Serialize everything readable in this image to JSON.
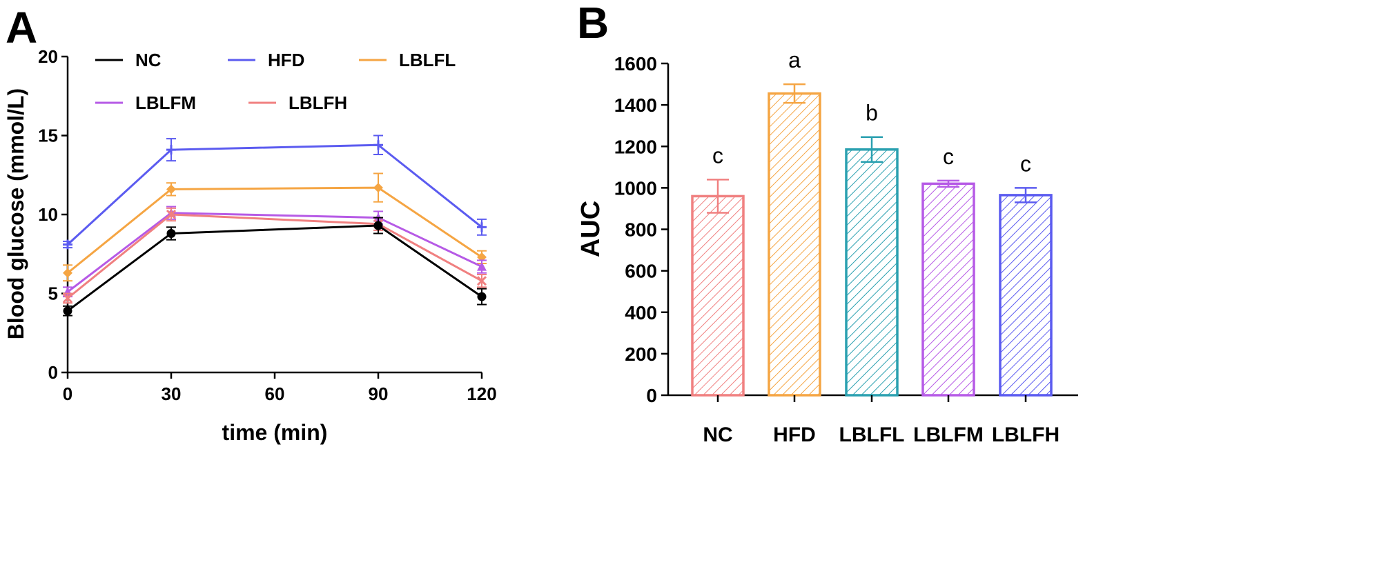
{
  "chart_data": [
    {
      "panel": "A",
      "type": "line",
      "title": "",
      "xlabel": "time (min)",
      "ylabel": "Blood glucose (mmol/L)",
      "xlim": [
        0,
        120
      ],
      "ylim": [
        0,
        20
      ],
      "xticks": [
        0,
        30,
        60,
        90,
        120
      ],
      "yticks": [
        0,
        5,
        10,
        15,
        20
      ],
      "x": [
        0,
        30,
        90,
        120
      ],
      "series": [
        {
          "name": "NC",
          "color": "#000000",
          "marker": "circle",
          "values": [
            3.9,
            8.8,
            9.3,
            4.8
          ],
          "errors": [
            0.3,
            0.4,
            0.5,
            0.5
          ]
        },
        {
          "name": "HFD",
          "color": "#5b5bf0",
          "marker": "plus",
          "values": [
            8.1,
            14.1,
            14.4,
            9.2
          ],
          "errors": [
            0.2,
            0.7,
            0.6,
            0.5
          ]
        },
        {
          "name": "LBLFL",
          "color": "#f5a543",
          "marker": "diamond",
          "values": [
            6.3,
            11.6,
            11.7,
            7.3
          ],
          "errors": [
            0.5,
            0.4,
            0.9,
            0.4
          ]
        },
        {
          "name": "LBLFM",
          "color": "#b65ae6",
          "marker": "triangle",
          "values": [
            5.1,
            10.1,
            9.8,
            6.7
          ],
          "errors": [
            0.3,
            0.4,
            0.4,
            0.4
          ]
        },
        {
          "name": "LBLFH",
          "color": "#f08080",
          "marker": "cross",
          "values": [
            4.7,
            10.0,
            9.4,
            5.8
          ],
          "errors": [
            0.3,
            0.4,
            0.4,
            0.4
          ]
        }
      ],
      "legend": [
        "NC",
        "HFD",
        "LBLFL",
        "LBLFM",
        "LBLFH"
      ]
    },
    {
      "panel": "B",
      "type": "bar",
      "title": "",
      "xlabel": "",
      "ylabel": "AUC",
      "ylim": [
        0,
        1600
      ],
      "yticks": [
        0,
        200,
        400,
        600,
        800,
        1000,
        1200,
        1400,
        1600
      ],
      "categories": [
        "NC",
        "HFD",
        "LBLFL",
        "LBLFM",
        "LBLFH"
      ],
      "values": [
        960,
        1455,
        1185,
        1020,
        965
      ],
      "errors": [
        80,
        45,
        60,
        15,
        35
      ],
      "colors": [
        "#f08080",
        "#f5a543",
        "#2aa0b0",
        "#b65ae6",
        "#5b5bf0"
      ],
      "significance": [
        "c",
        "a",
        "b",
        "c",
        "c"
      ]
    }
  ]
}
